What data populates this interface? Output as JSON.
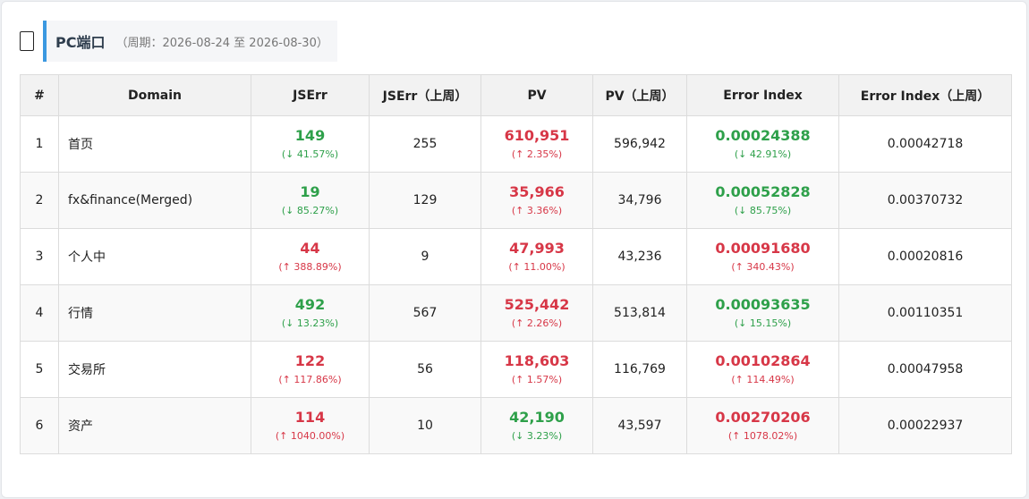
{
  "header": {
    "title": "PC端口",
    "subtitle": "（周期：2026-08-24 至 2026-08-30）"
  },
  "columns": [
    "#",
    "Domain",
    "JSErr",
    "JSErr（上周）",
    "PV",
    "PV（上周）",
    "Error Index",
    "Error Index（上周）"
  ],
  "rows": [
    {
      "n": "1",
      "domain": "首页",
      "jserr": "149",
      "jserr_change": "(↓ 41.57%)",
      "jserr_trend": "down",
      "jserr_prev": "255",
      "pv": "610,951",
      "pv_change": "(↑ 2.35%)",
      "pv_trend": "up",
      "pv_prev": "596,942",
      "ei": "0.00024388",
      "ei_change": "(↓ 42.91%)",
      "ei_trend": "down",
      "ei_prev": "0.00042718"
    },
    {
      "n": "2",
      "domain": "fx&finance(Merged)",
      "jserr": "19",
      "jserr_change": "(↓ 85.27%)",
      "jserr_trend": "down",
      "jserr_prev": "129",
      "pv": "35,966",
      "pv_change": "(↑ 3.36%)",
      "pv_trend": "up",
      "pv_prev": "34,796",
      "ei": "0.00052828",
      "ei_change": "(↓ 85.75%)",
      "ei_trend": "down",
      "ei_prev": "0.00370732"
    },
    {
      "n": "3",
      "domain": "个人中",
      "jserr": "44",
      "jserr_change": "(↑ 388.89%)",
      "jserr_trend": "up",
      "jserr_prev": "9",
      "pv": "47,993",
      "pv_change": "(↑ 11.00%)",
      "pv_trend": "up",
      "pv_prev": "43,236",
      "ei": "0.00091680",
      "ei_change": "(↑ 340.43%)",
      "ei_trend": "up",
      "ei_prev": "0.00020816"
    },
    {
      "n": "4",
      "domain": "行情",
      "jserr": "492",
      "jserr_change": "(↓ 13.23%)",
      "jserr_trend": "down",
      "jserr_prev": "567",
      "pv": "525,442",
      "pv_change": "(↑ 2.26%)",
      "pv_trend": "up",
      "pv_prev": "513,814",
      "ei": "0.00093635",
      "ei_change": "(↓ 15.15%)",
      "ei_trend": "down",
      "ei_prev": "0.00110351"
    },
    {
      "n": "5",
      "domain": "交易所",
      "jserr": "122",
      "jserr_change": "(↑ 117.86%)",
      "jserr_trend": "up",
      "jserr_prev": "56",
      "pv": "118,603",
      "pv_change": "(↑ 1.57%)",
      "pv_trend": "up",
      "pv_prev": "116,769",
      "ei": "0.00102864",
      "ei_change": "(↑ 114.49%)",
      "ei_trend": "up",
      "ei_prev": "0.00047958"
    },
    {
      "n": "6",
      "domain": "资产",
      "jserr": "114",
      "jserr_change": "(↑ 1040.00%)",
      "jserr_trend": "up",
      "jserr_prev": "10",
      "pv": "42,190",
      "pv_change": "(↓ 3.23%)",
      "pv_trend": "down",
      "pv_prev": "43,597",
      "ei": "0.00270206",
      "ei_change": "(↑ 1078.02%)",
      "ei_trend": "up",
      "ei_prev": "0.00022937"
    }
  ],
  "colors": {
    "up": "#d73747",
    "down": "#2ea04a",
    "accent": "#3b98e0"
  }
}
